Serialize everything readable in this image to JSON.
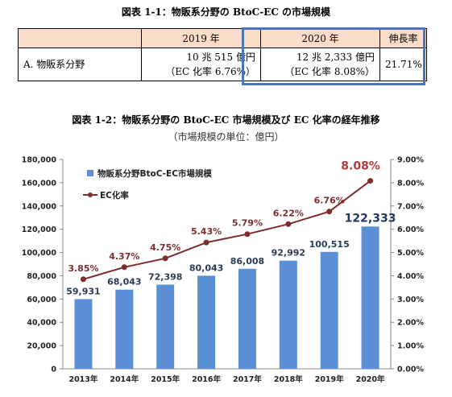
{
  "table_title": "図表 1-1：物販系分野の BtoC-EC の市場規模",
  "table": {
    "headers": [
      "",
      "2019 年",
      "2020 年",
      "伸長率"
    ],
    "row_label": "A. 物販系分野",
    "y2019_value": "10 兆 515 億円",
    "y2019_ratio": "（EC 化率 6.76%）",
    "y2020_value": "12 兆 2,333 億円",
    "y2020_ratio": "（EC 化率 8.08%）",
    "growth": "21.71%"
  },
  "chart_title": "図表 1-2：物販系分野の BtoC-EC 市場規模及び EC 化率の経年推移",
  "chart_unit": "（市場規模の単位：億円）",
  "colors": {
    "bar": "#5b8fd6",
    "line": "#7b2c2c",
    "highlight_text": "#1f3864",
    "highlight_line": "#b23a3a"
  },
  "chart_data": {
    "type": "bar+line",
    "categories": [
      "2013年",
      "2014年",
      "2015年",
      "2016年",
      "2017年",
      "2018年",
      "2019年",
      "2020年"
    ],
    "series": [
      {
        "name": "物販系分野BtoC-EC市場規模",
        "type": "bar",
        "axis": "left",
        "values": [
          59931,
          68043,
          72398,
          80043,
          86008,
          92992,
          100515,
          122333
        ],
        "labels": [
          "59,931",
          "68,043",
          "72,398",
          "80,043",
          "86,008",
          "92,992",
          "100,515",
          "122,333"
        ]
      },
      {
        "name": "EC化率",
        "type": "line",
        "axis": "right",
        "values": [
          3.85,
          4.37,
          4.75,
          5.43,
          5.79,
          6.22,
          6.76,
          8.08
        ],
        "labels": [
          "3.85%",
          "4.37%",
          "4.75%",
          "5.43%",
          "5.79%",
          "6.22%",
          "6.76%",
          "8.08%"
        ]
      }
    ],
    "y_left": {
      "min": 0,
      "max": 180000,
      "ticks": [
        "0",
        "20,000",
        "40,000",
        "60,000",
        "80,000",
        "100,000",
        "120,000",
        "140,000",
        "160,000",
        "180,000"
      ]
    },
    "y_right": {
      "min": 0,
      "max": 9,
      "ticks": [
        "0.00%",
        "1.00%",
        "2.00%",
        "3.00%",
        "4.00%",
        "5.00%",
        "6.00%",
        "7.00%",
        "8.00%",
        "9.00%"
      ]
    },
    "legend": {
      "bar_label": "物販系分野BtoC-EC市場規模",
      "line_label": "EC化率",
      "placement": "top-left"
    },
    "grid": false
  }
}
